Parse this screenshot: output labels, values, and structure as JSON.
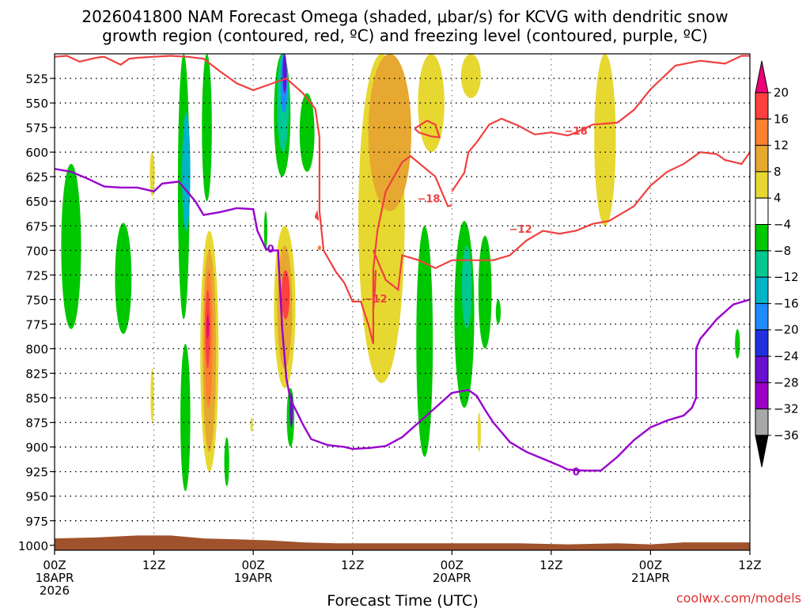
{
  "chart_data": {
    "type": "heatmap",
    "title_line1": "2026041800 NAM Forecast Omega (shaded, μbar/s) for KCVG with dendritic snow",
    "title_line2": "growth region (contoured, red, ºC) and freezing level (contoured, purple, ºC)",
    "xlabel": "Forecast Time (UTC)",
    "credit": "coolwx.com/models",
    "x_range_hours": [
      0,
      84
    ],
    "y_range_mb": [
      500,
      1005
    ],
    "y_ticks": [
      525,
      550,
      575,
      600,
      625,
      650,
      675,
      700,
      725,
      750,
      775,
      800,
      825,
      850,
      875,
      900,
      925,
      950,
      975,
      1000
    ],
    "x_ticks": [
      {
        "hour": 0,
        "lines": [
          "00Z",
          "18APR",
          "2026"
        ]
      },
      {
        "hour": 12,
        "lines": [
          "12Z"
        ]
      },
      {
        "hour": 24,
        "lines": [
          "00Z",
          "19APR"
        ]
      },
      {
        "hour": 36,
        "lines": [
          "12Z"
        ]
      },
      {
        "hour": 48,
        "lines": [
          "00Z",
          "20APR"
        ]
      },
      {
        "hour": 60,
        "lines": [
          "12Z"
        ]
      },
      {
        "hour": 72,
        "lines": [
          "00Z",
          "21APR"
        ]
      },
      {
        "hour": 84,
        "lines": [
          "12Z"
        ]
      }
    ],
    "colorbar": {
      "labels": [
        "20",
        "16",
        "12",
        "8",
        "4",
        "−4",
        "−8",
        "−12",
        "−16",
        "−20",
        "−24",
        "−28",
        "−32",
        "−36"
      ],
      "colors": [
        "#ee0077",
        "#ff4040",
        "#ff8030",
        "#e6a830",
        "#e6d830",
        "#ffffff",
        "#00c800",
        "#00c890",
        "#00b4c8",
        "#1e8cff",
        "#2030e0",
        "#6a10d0",
        "#9a00c8",
        "#a8a8a8",
        "#000000"
      ]
    },
    "omega_regions": [
      {
        "hour": 2.0,
        "mb_top": 612,
        "mb_bot": 780,
        "hw": 1.2,
        "level": -6
      },
      {
        "hour": 8.3,
        "mb_top": 672,
        "mb_bot": 785,
        "hw": 1.0,
        "level": -6
      },
      {
        "hour": 11.8,
        "mb_top": 600,
        "mb_bot": 645,
        "hw": 0.3,
        "level": 5
      },
      {
        "hour": 11.8,
        "mb_top": 820,
        "mb_bot": 875,
        "hw": 0.2,
        "level": 5
      },
      {
        "hour": 15.6,
        "mb_top": 500,
        "mb_bot": 770,
        "hw": 0.7,
        "level": -6
      },
      {
        "hour": 15.9,
        "mb_top": 560,
        "mb_bot": 680,
        "hw": 0.5,
        "level": -13
      },
      {
        "hour": 18.4,
        "mb_top": 500,
        "mb_bot": 650,
        "hw": 0.6,
        "level": -6
      },
      {
        "hour": 15.8,
        "mb_top": 795,
        "mb_bot": 945,
        "hw": 0.6,
        "level": -6
      },
      {
        "hour": 18.7,
        "mb_top": 680,
        "mb_bot": 925,
        "hw": 1.1,
        "level": 5
      },
      {
        "hour": 18.7,
        "mb_top": 700,
        "mb_bot": 905,
        "hw": 0.8,
        "level": 9
      },
      {
        "hour": 18.6,
        "mb_top": 720,
        "mb_bot": 860,
        "hw": 0.5,
        "level": 13
      },
      {
        "hour": 18.5,
        "mb_top": 740,
        "mb_bot": 820,
        "hw": 0.3,
        "level": 17
      },
      {
        "hour": 18.5,
        "mb_top": 765,
        "mb_bot": 790,
        "hw": 0.15,
        "level": 21
      },
      {
        "hour": 20.8,
        "mb_top": 890,
        "mb_bot": 940,
        "hw": 0.3,
        "level": -6
      },
      {
        "hour": 25.5,
        "mb_top": 660,
        "mb_bot": 700,
        "hw": 0.2,
        "level": -6
      },
      {
        "hour": 23.8,
        "mb_top": 870,
        "mb_bot": 885,
        "hw": 0.15,
        "level": 5
      },
      {
        "hour": 27.5,
        "mb_top": 500,
        "mb_bot": 625,
        "hw": 1.0,
        "level": -6
      },
      {
        "hour": 27.6,
        "mb_top": 500,
        "mb_bot": 600,
        "hw": 0.7,
        "level": -11
      },
      {
        "hour": 27.7,
        "mb_top": 500,
        "mb_bot": 560,
        "hw": 0.4,
        "level": -17
      },
      {
        "hour": 27.8,
        "mb_top": 500,
        "mb_bot": 540,
        "hw": 0.25,
        "level": -25
      },
      {
        "hour": 30.5,
        "mb_top": 540,
        "mb_bot": 620,
        "hw": 0.9,
        "level": -6
      },
      {
        "hour": 27.8,
        "mb_top": 675,
        "mb_bot": 840,
        "hw": 1.3,
        "level": 5
      },
      {
        "hour": 27.8,
        "mb_top": 695,
        "mb_bot": 820,
        "hw": 0.9,
        "level": 9
      },
      {
        "hour": 27.9,
        "mb_top": 720,
        "mb_bot": 770,
        "hw": 0.5,
        "level": 17
      },
      {
        "hour": 28.5,
        "mb_top": 840,
        "mb_bot": 900,
        "hw": 0.45,
        "level": -6
      },
      {
        "hour": 28.6,
        "mb_top": 845,
        "mb_bot": 880,
        "hw": 0.2,
        "level": -25
      },
      {
        "hour": 32.0,
        "mb_top": 695,
        "mb_bot": 700,
        "hw": 0.2,
        "level": 13
      },
      {
        "hour": 39.5,
        "mb_top": 500,
        "mb_bot": 835,
        "hw": 2.8,
        "level": 5
      },
      {
        "hour": 40.5,
        "mb_top": 500,
        "mb_bot": 660,
        "hw": 2.6,
        "level": 9
      },
      {
        "hour": 45.5,
        "mb_top": 500,
        "mb_bot": 600,
        "hw": 1.6,
        "level": 5
      },
      {
        "hour": 50.3,
        "mb_top": 500,
        "mb_bot": 545,
        "hw": 1.2,
        "level": 5
      },
      {
        "hour": 44.7,
        "mb_top": 675,
        "mb_bot": 910,
        "hw": 1.0,
        "level": -6
      },
      {
        "hour": 49.5,
        "mb_top": 670,
        "mb_bot": 860,
        "hw": 1.2,
        "level": -6
      },
      {
        "hour": 49.8,
        "mb_top": 695,
        "mb_bot": 780,
        "hw": 0.6,
        "level": -11
      },
      {
        "hour": 52.0,
        "mb_top": 685,
        "mb_bot": 800,
        "hw": 0.8,
        "level": -6
      },
      {
        "hour": 53.6,
        "mb_top": 750,
        "mb_bot": 775,
        "hw": 0.3,
        "level": -6
      },
      {
        "hour": 51.3,
        "mb_top": 865,
        "mb_bot": 905,
        "hw": 0.2,
        "level": 5
      },
      {
        "hour": 66.5,
        "mb_top": 500,
        "mb_bot": 675,
        "hw": 1.3,
        "level": 5
      },
      {
        "hour": 82.5,
        "mb_top": 780,
        "mb_bot": 810,
        "hw": 0.3,
        "level": -6
      }
    ],
    "red_contours": [
      {
        "points": [
          [
            0,
            503
          ],
          [
            1.5,
            502
          ],
          [
            3,
            508
          ],
          [
            5,
            504
          ],
          [
            6,
            503
          ],
          [
            8,
            511
          ],
          [
            9,
            505
          ],
          [
            10,
            504
          ],
          [
            12,
            503
          ],
          [
            14,
            502
          ],
          [
            16,
            503
          ],
          [
            18,
            505
          ],
          [
            20,
            518
          ],
          [
            22,
            530
          ],
          [
            24,
            537
          ],
          [
            26,
            531
          ],
          [
            28,
            525
          ],
          [
            30,
            540
          ],
          [
            31.5,
            556
          ],
          [
            32,
            585
          ],
          [
            32,
            620
          ],
          [
            32,
            660
          ],
          [
            32.5,
            700
          ],
          [
            34,
            722
          ],
          [
            35,
            733
          ],
          [
            36,
            752
          ],
          [
            37,
            752
          ],
          [
            38,
            778
          ],
          [
            38.5,
            795
          ],
          [
            38.5,
            720
          ],
          [
            39,
            680
          ],
          [
            40,
            640
          ],
          [
            42,
            610
          ],
          [
            43,
            604
          ],
          [
            44,
            611
          ],
          [
            46,
            625
          ],
          [
            47.5,
            655
          ],
          [
            48,
            654
          ]
        ]
      },
      {
        "points": [
          [
            38.5,
            760
          ],
          [
            38.7,
            740
          ],
          [
            38.8,
            720
          ]
        ]
      },
      {
        "points": [
          [
            38.5,
            700
          ],
          [
            40,
            730
          ],
          [
            41.5,
            740
          ],
          [
            42,
            705
          ],
          [
            44,
            710
          ],
          [
            46,
            718
          ],
          [
            48,
            710
          ],
          [
            50,
            710
          ],
          [
            53,
            710
          ],
          [
            55,
            705
          ],
          [
            57,
            690
          ],
          [
            59,
            680
          ],
          [
            61,
            683
          ],
          [
            63,
            680
          ],
          [
            65,
            673
          ],
          [
            67,
            670
          ],
          [
            70,
            655
          ],
          [
            72,
            634
          ],
          [
            74,
            620
          ],
          [
            76,
            612
          ],
          [
            78,
            600
          ],
          [
            80,
            602
          ],
          [
            81,
            608
          ],
          [
            83,
            612
          ],
          [
            84,
            600
          ]
        ]
      },
      {
        "points": [
          [
            48,
            640
          ],
          [
            49.5,
            621
          ],
          [
            50,
            600
          ],
          [
            51,
            590
          ],
          [
            52.5,
            572
          ],
          [
            54,
            566
          ],
          [
            56,
            573
          ],
          [
            58,
            582
          ],
          [
            60,
            580
          ],
          [
            62,
            583
          ],
          [
            63,
            580
          ],
          [
            65,
            572
          ],
          [
            68,
            570
          ],
          [
            70,
            557
          ],
          [
            72,
            536
          ],
          [
            75,
            512
          ],
          [
            78,
            507
          ],
          [
            81,
            510
          ],
          [
            83,
            502
          ],
          [
            84,
            502
          ]
        ]
      },
      {
        "points": [
          [
            43.5,
            576
          ],
          [
            45,
            568
          ],
          [
            46,
            572
          ],
          [
            46.5,
            585
          ],
          [
            45.5,
            584
          ],
          [
            44,
            580
          ],
          [
            43.5,
            576
          ]
        ]
      },
      {
        "points": [
          [
            31.5,
            666
          ],
          [
            31.7,
            662
          ],
          [
            31.8,
            668
          ],
          [
            31.5,
            666
          ]
        ]
      }
    ],
    "red_labels": [
      {
        "text": "−18",
        "hour": 45.2,
        "mb": 647
      },
      {
        "text": "−18",
        "hour": 63.0,
        "mb": 578
      },
      {
        "text": "−12",
        "hour": 56.3,
        "mb": 678
      },
      {
        "text": "−12",
        "hour": 38.8,
        "mb": 749
      }
    ],
    "purple_contour": [
      [
        0,
        617
      ],
      [
        2,
        620
      ],
      [
        4,
        627
      ],
      [
        6,
        635
      ],
      [
        8,
        636
      ],
      [
        10,
        636
      ],
      [
        12,
        640
      ],
      [
        13,
        632
      ],
      [
        15,
        630
      ],
      [
        17,
        650
      ],
      [
        18,
        664
      ],
      [
        20,
        661
      ],
      [
        22,
        657
      ],
      [
        24,
        658
      ],
      [
        24.5,
        680
      ],
      [
        25.5,
        698
      ],
      [
        26,
        700
      ],
      [
        27,
        700
      ],
      [
        27.5,
        780
      ],
      [
        28,
        830
      ],
      [
        28.5,
        852
      ],
      [
        29,
        860
      ],
      [
        30,
        877
      ],
      [
        31,
        892
      ],
      [
        33,
        898
      ],
      [
        35,
        900
      ],
      [
        36,
        902
      ],
      [
        38,
        901
      ],
      [
        40,
        899
      ],
      [
        42,
        890
      ],
      [
        44,
        875
      ],
      [
        46,
        860
      ],
      [
        48,
        845
      ],
      [
        50,
        842
      ],
      [
        51,
        848
      ],
      [
        52,
        862
      ],
      [
        53,
        875
      ],
      [
        54,
        885
      ],
      [
        55,
        895
      ],
      [
        57,
        905
      ],
      [
        59,
        912
      ],
      [
        61,
        919
      ],
      [
        62,
        923
      ],
      [
        64,
        924
      ],
      [
        66,
        924
      ],
      [
        68,
        910
      ],
      [
        70,
        893
      ],
      [
        72,
        880
      ],
      [
        74,
        873
      ],
      [
        76,
        868
      ],
      [
        77,
        860
      ],
      [
        77.5,
        850
      ],
      [
        77.5,
        800
      ],
      [
        78,
        790
      ],
      [
        80,
        770
      ],
      [
        82,
        755
      ],
      [
        84,
        750
      ]
    ],
    "purple_labels": [
      {
        "text": "0",
        "hour": 26.1,
        "mb": 698
      },
      {
        "text": "0",
        "hour": 63.0,
        "mb": 925
      }
    ],
    "terrain": [
      [
        0,
        993
      ],
      [
        5,
        992
      ],
      [
        10,
        990
      ],
      [
        14,
        990
      ],
      [
        18,
        993
      ],
      [
        22,
        994
      ],
      [
        26,
        995
      ],
      [
        30,
        997
      ],
      [
        34,
        998
      ],
      [
        40,
        998
      ],
      [
        48,
        998
      ],
      [
        56,
        998
      ],
      [
        62,
        999
      ],
      [
        68,
        998
      ],
      [
        72,
        999
      ],
      [
        76,
        997
      ],
      [
        80,
        997
      ],
      [
        84,
        997
      ]
    ]
  }
}
